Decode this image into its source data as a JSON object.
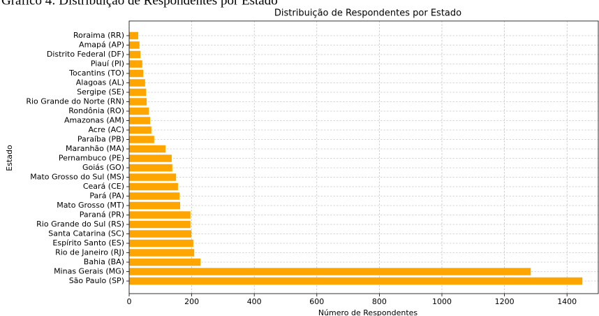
{
  "caption": "Gráfico 4: Distribuição de Respondentes por Estado",
  "chart_data": {
    "type": "barh",
    "title": "Distribuição de Respondentes por Estado",
    "x_label": "Número de Respondentes",
    "y_label": "Estado",
    "categories": [
      "Roraima (RR)",
      "Amapá (AP)",
      "Distrito Federal (DF)",
      "Piauí (PI)",
      "Tocantins (TO)",
      "Alagoas (AL)",
      "Sergipe (SE)",
      "Rio Grande do Norte (RN)",
      "Rondônia (RO)",
      "Amazonas (AM)",
      "Acre (AC)",
      "Paraíba (PB)",
      "Maranhão (MA)",
      "Pernambuco (PE)",
      "Goiás (GO)",
      "Mato Grosso do Sul (MS)",
      "Ceará (CE)",
      "Pará (PA)",
      "Mato Grosso (MT)",
      "Paraná (PR)",
      "Rio Grande do Sul (RS)",
      "Santa Catarina (SC)",
      "Espírito Santo (ES)",
      "Rio de Janeiro (RJ)",
      "Bahia (BA)",
      "Minas Gerais (MG)",
      "São Paulo (SP)"
    ],
    "values": [
      29,
      33,
      36,
      42,
      45,
      51,
      54,
      56,
      63,
      67,
      71,
      80,
      116,
      136,
      138,
      150,
      156,
      161,
      163,
      196,
      196,
      199,
      205,
      208,
      228,
      1284,
      1449
    ],
    "color": "#ffa500",
    "xlim": [
      0,
      1500
    ],
    "xticks": [
      0,
      200,
      400,
      600,
      800,
      1000,
      1200,
      1400
    ],
    "grid": true
  }
}
